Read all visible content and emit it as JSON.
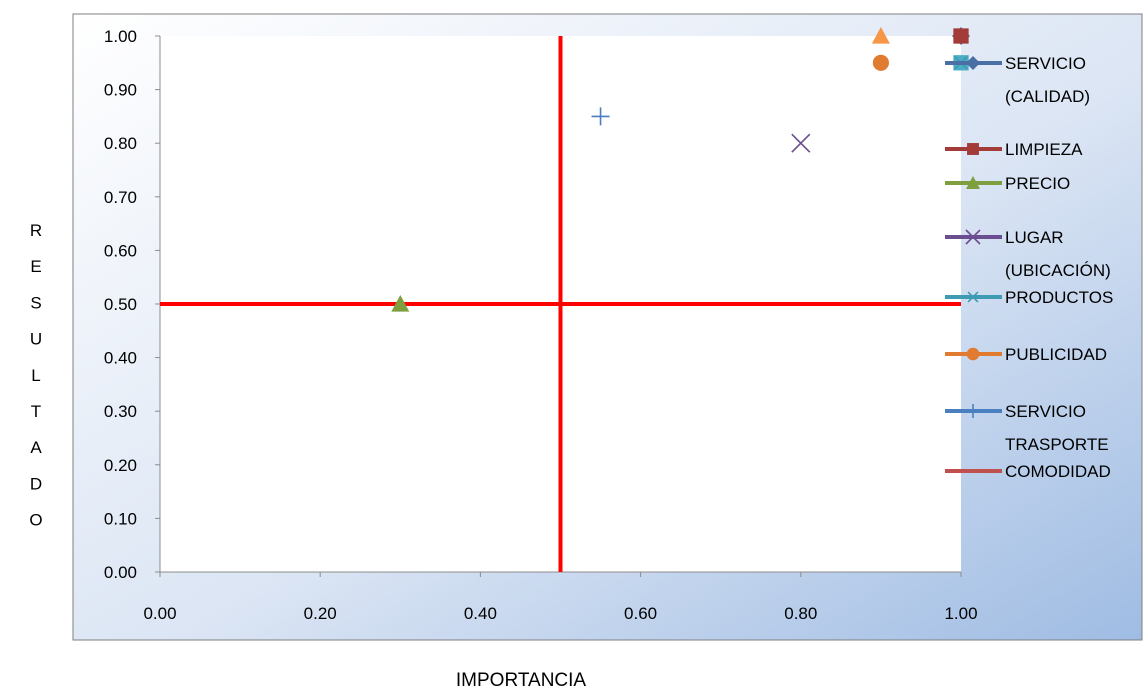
{
  "chart_data": {
    "type": "scatter",
    "title": "",
    "xlabel": "IMPORTANCIA",
    "ylabel": "RESULTADO",
    "xlim": [
      0,
      1
    ],
    "ylim": [
      0,
      1
    ],
    "x_ticks": [
      "0.00",
      "0.20",
      "0.40",
      "0.60",
      "0.80",
      "1.00"
    ],
    "y_ticks": [
      "0.00",
      "0.10",
      "0.20",
      "0.30",
      "0.40",
      "0.50",
      "0.60",
      "0.70",
      "0.80",
      "0.90",
      "1.00"
    ],
    "grid": false,
    "legend_position": "right",
    "quadrant_lines": {
      "x": 0.5,
      "y": 0.5,
      "color": "#ff0000"
    },
    "series": [
      {
        "name": "SERVICIO (CALIDAD)",
        "legend_lines": [
          "SERVICIO",
          "(CALIDAD)"
        ],
        "marker": "diamond",
        "color": "#4a6fa5",
        "points": [
          [
            1.0,
            1.0
          ]
        ]
      },
      {
        "name": "LIMPIEZA",
        "legend_lines": [
          "LIMPIEZA"
        ],
        "marker": "square",
        "color": "#a33b39",
        "points": [
          [
            1.0,
            1.0
          ]
        ]
      },
      {
        "name": "PRECIO",
        "legend_lines": [
          "PRECIO"
        ],
        "marker": "triangle",
        "color": "#7f9f3f",
        "points": [
          [
            0.3,
            0.5
          ]
        ]
      },
      {
        "name": "LUGAR (UBICACIÓN)",
        "legend_lines": [
          "LUGAR",
          "(UBICACIÓN)"
        ],
        "marker": "x",
        "color": "#6a4e8f",
        "points": [
          [
            0.8,
            0.8
          ]
        ]
      },
      {
        "name": "PRODUCTOS",
        "legend_lines": [
          "PRODUCTOS"
        ],
        "marker": "star",
        "color": "#3f9bb1",
        "points": [
          [
            1.0,
            0.95
          ]
        ]
      },
      {
        "name": "PUBLICIDAD",
        "legend_lines": [
          "PUBLICIDAD"
        ],
        "marker": "circle",
        "color": "#e07b30",
        "points": [
          [
            0.9,
            0.95
          ]
        ]
      },
      {
        "name": "SERVICIO TRASPORTE",
        "legend_lines": [
          "SERVICIO",
          "TRASPORTE"
        ],
        "marker": "plus",
        "color": "#4a7fc0",
        "points": [
          [
            0.55,
            0.85
          ]
        ]
      },
      {
        "name": "COMODIDAD",
        "legend_lines": [
          "COMODIDAD"
        ],
        "marker": "line",
        "color": "#c0504d",
        "points": []
      }
    ],
    "extra_points": [
      {
        "marker": "triangle",
        "color": "#f79646",
        "point": [
          0.9,
          1.0
        ]
      },
      {
        "marker": "square",
        "color": "#4bacc6",
        "point": [
          1.0,
          0.95
        ]
      }
    ]
  }
}
